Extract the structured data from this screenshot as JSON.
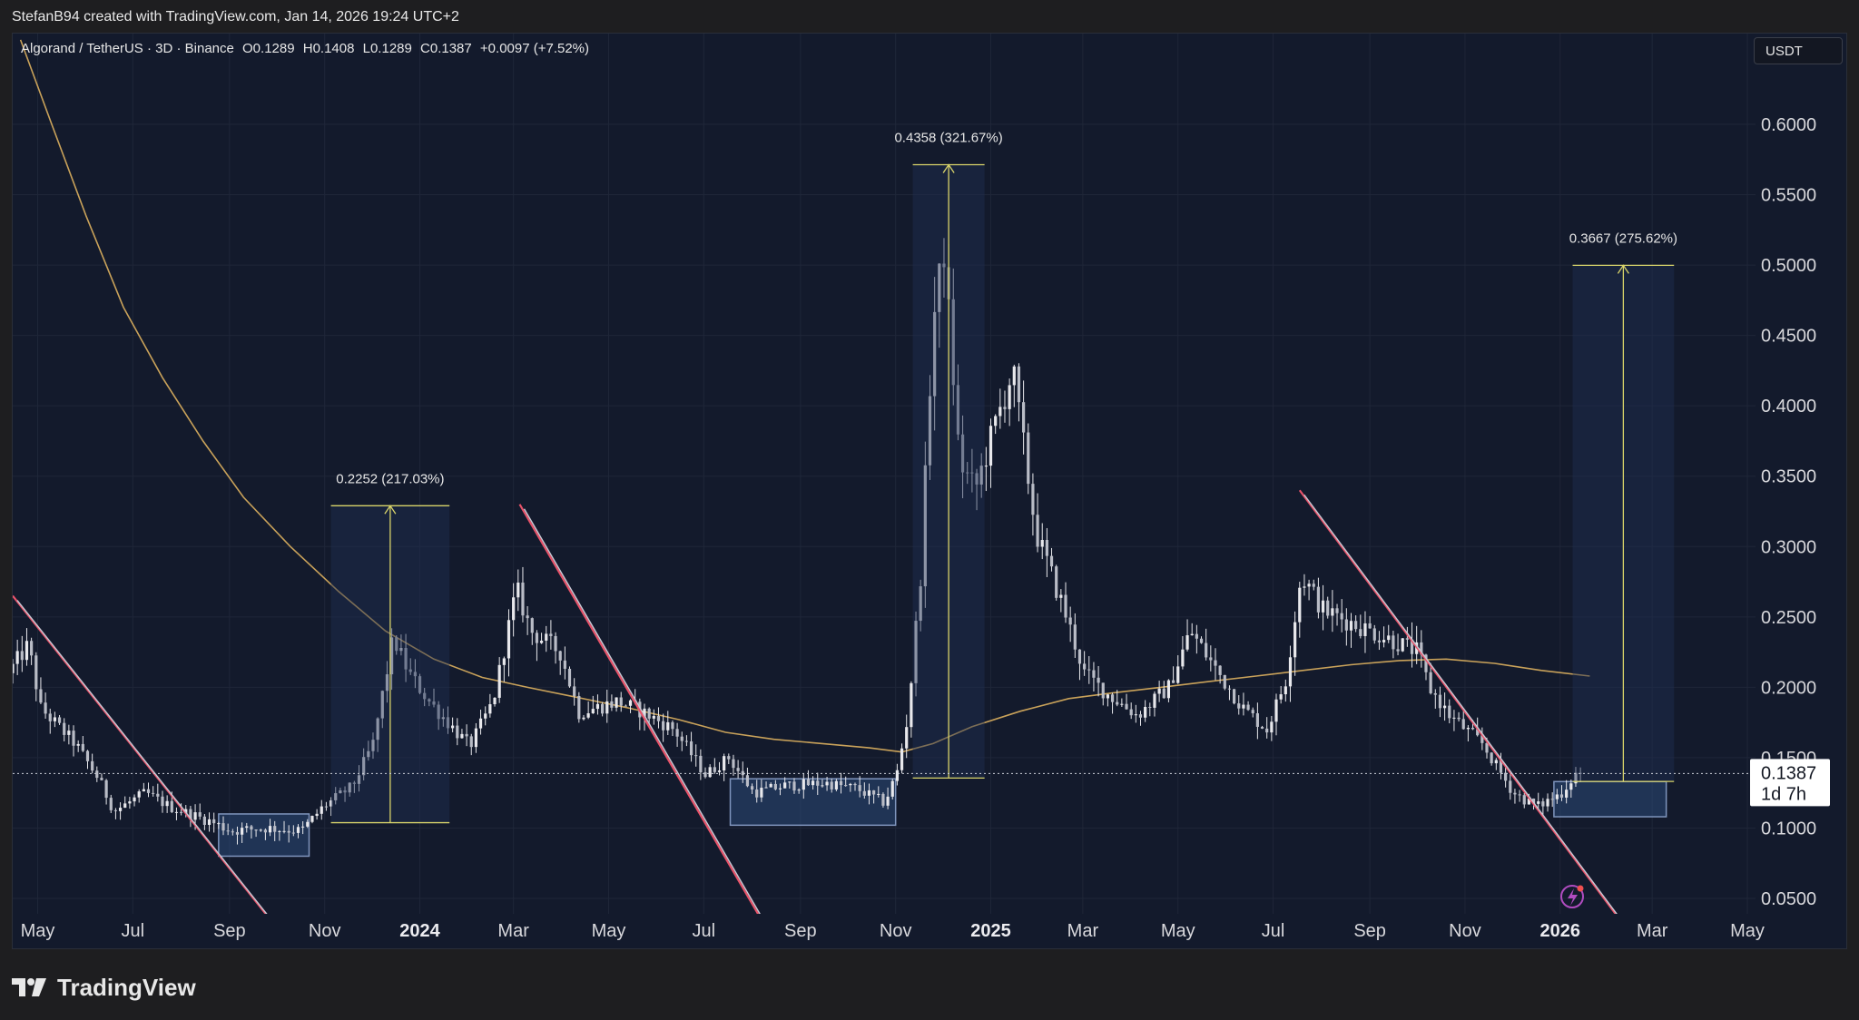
{
  "header": {
    "credit": "StefanB94 created with TradingView.com, Jan 14, 2026 19:24 UTC+2"
  },
  "legend": {
    "symbol": "Algorand / TetherUS · 3D · Binance",
    "open": "O0.1289",
    "high": "H0.1408",
    "low": "L0.1289",
    "close": "C0.1387",
    "change": "+0.0097 (+7.52%)"
  },
  "currency_button": "USDT",
  "footer": {
    "brand": "TradingView"
  },
  "colors": {
    "background": "#131a2c",
    "candle": "#e8e8ec",
    "ma_line": "#c9a25a",
    "trendline": "#e8536a",
    "measure": "#d9d46a",
    "zone_fill": "#2c4a78"
  },
  "chart_data": {
    "type": "candlestick",
    "price_axis": {
      "ticks": [
        "0.6000",
        "0.5500",
        "0.5000",
        "0.4500",
        "0.4000",
        "0.3500",
        "0.3000",
        "0.2500",
        "0.2000",
        "0.1500",
        "0.1000",
        "0.0500"
      ],
      "range": [
        0.02,
        0.64
      ]
    },
    "time_axis": {
      "ticks": [
        {
          "label": "May",
          "bold": false
        },
        {
          "label": "Jul",
          "bold": false
        },
        {
          "label": "Sep",
          "bold": false
        },
        {
          "label": "Nov",
          "bold": false
        },
        {
          "label": "2024",
          "bold": true
        },
        {
          "label": "Mar",
          "bold": false
        },
        {
          "label": "May",
          "bold": false
        },
        {
          "label": "Jul",
          "bold": false
        },
        {
          "label": "Sep",
          "bold": false
        },
        {
          "label": "Nov",
          "bold": false
        },
        {
          "label": "2025",
          "bold": true
        },
        {
          "label": "Mar",
          "bold": false
        },
        {
          "label": "May",
          "bold": false
        },
        {
          "label": "Jul",
          "bold": false
        },
        {
          "label": "Sep",
          "bold": false
        },
        {
          "label": "Nov",
          "bold": false
        },
        {
          "label": "2026",
          "bold": true
        },
        {
          "label": "Mar",
          "bold": false
        },
        {
          "label": "May",
          "bold": false
        }
      ],
      "start": "2023-04-15",
      "end": "2026-05-01"
    },
    "current_price": {
      "value": 0.1387,
      "label": "0.1387",
      "countdown": "1d 7h"
    },
    "price_path": [
      [
        "2023-04-15",
        0.21
      ],
      [
        "2023-04-28",
        0.23
      ],
      [
        "2023-05-06",
        0.185
      ],
      [
        "2023-05-28",
        0.16
      ],
      [
        "2023-06-12",
        0.135
      ],
      [
        "2023-06-22",
        0.112
      ],
      [
        "2023-07-12",
        0.125
      ],
      [
        "2023-07-28",
        0.115
      ],
      [
        "2023-08-22",
        0.105
      ],
      [
        "2023-09-05",
        0.098
      ],
      [
        "2023-09-28",
        0.1
      ],
      [
        "2023-10-20",
        0.098
      ],
      [
        "2023-11-03",
        0.115
      ],
      [
        "2023-11-22",
        0.13
      ],
      [
        "2023-12-05",
        0.16
      ],
      [
        "2023-12-18",
        0.235
      ],
      [
        "2023-12-28",
        0.21
      ],
      [
        "2024-01-10",
        0.19
      ],
      [
        "2024-01-22",
        0.175
      ],
      [
        "2024-02-05",
        0.158
      ],
      [
        "2024-02-20",
        0.19
      ],
      [
        "2024-03-06",
        0.27
      ],
      [
        "2024-03-15",
        0.24
      ],
      [
        "2024-04-03",
        0.225
      ],
      [
        "2024-04-15",
        0.182
      ],
      [
        "2024-05-10",
        0.19
      ],
      [
        "2024-05-25",
        0.183
      ],
      [
        "2024-06-15",
        0.17
      ],
      [
        "2024-07-05",
        0.138
      ],
      [
        "2024-07-20",
        0.15
      ],
      [
        "2024-08-05",
        0.125
      ],
      [
        "2024-08-25",
        0.13
      ],
      [
        "2024-09-20",
        0.132
      ],
      [
        "2024-10-10",
        0.128
      ],
      [
        "2024-10-28",
        0.118
      ],
      [
        "2024-11-05",
        0.14
      ],
      [
        "2024-11-12",
        0.18
      ],
      [
        "2024-11-20",
        0.28
      ],
      [
        "2024-11-28",
        0.46
      ],
      [
        "2024-12-05",
        0.51
      ],
      [
        "2024-12-15",
        0.36
      ],
      [
        "2024-12-25",
        0.34
      ],
      [
        "2025-01-05",
        0.38
      ],
      [
        "2025-01-18",
        0.425
      ],
      [
        "2025-02-02",
        0.31
      ],
      [
        "2025-02-20",
        0.255
      ],
      [
        "2025-03-05",
        0.21
      ],
      [
        "2025-03-20",
        0.195
      ],
      [
        "2025-04-08",
        0.18
      ],
      [
        "2025-04-28",
        0.2
      ],
      [
        "2025-05-12",
        0.24
      ],
      [
        "2025-05-30",
        0.21
      ],
      [
        "2025-06-15",
        0.185
      ],
      [
        "2025-06-30",
        0.17
      ],
      [
        "2025-07-12",
        0.205
      ],
      [
        "2025-07-22",
        0.28
      ],
      [
        "2025-08-05",
        0.255
      ],
      [
        "2025-08-25",
        0.245
      ],
      [
        "2025-09-15",
        0.235
      ],
      [
        "2025-10-05",
        0.225
      ],
      [
        "2025-10-12",
        0.2
      ],
      [
        "2025-10-25",
        0.18
      ],
      [
        "2025-11-15",
        0.16
      ],
      [
        "2025-12-05",
        0.125
      ],
      [
        "2025-12-20",
        0.115
      ],
      [
        "2026-01-05",
        0.125
      ],
      [
        "2026-01-14",
        0.1387
      ]
    ],
    "moving_average": [
      [
        "2023-04-20",
        0.66
      ],
      [
        "2023-05-10",
        0.6
      ],
      [
        "2023-06-01",
        0.535
      ],
      [
        "2023-06-25",
        0.47
      ],
      [
        "2023-07-20",
        0.42
      ],
      [
        "2023-08-15",
        0.375
      ],
      [
        "2023-09-10",
        0.335
      ],
      [
        "2023-10-10",
        0.3
      ],
      [
        "2023-11-10",
        0.268
      ],
      [
        "2023-12-10",
        0.24
      ],
      [
        "2024-01-10",
        0.22
      ],
      [
        "2024-02-10",
        0.207
      ],
      [
        "2024-03-10",
        0.2
      ],
      [
        "2024-04-10",
        0.193
      ],
      [
        "2024-05-15",
        0.185
      ],
      [
        "2024-06-15",
        0.177
      ],
      [
        "2024-07-15",
        0.168
      ],
      [
        "2024-08-15",
        0.163
      ],
      [
        "2024-09-15",
        0.16
      ],
      [
        "2024-10-15",
        0.157
      ],
      [
        "2024-11-05",
        0.154
      ],
      [
        "2024-11-25",
        0.16
      ],
      [
        "2024-12-20",
        0.172
      ],
      [
        "2025-01-20",
        0.183
      ],
      [
        "2025-02-20",
        0.192
      ],
      [
        "2025-03-20",
        0.196
      ],
      [
        "2025-04-20",
        0.2
      ],
      [
        "2025-05-20",
        0.204
      ],
      [
        "2025-06-20",
        0.208
      ],
      [
        "2025-07-20",
        0.212
      ],
      [
        "2025-08-20",
        0.216
      ],
      [
        "2025-09-20",
        0.219
      ],
      [
        "2025-10-20",
        0.22
      ],
      [
        "2025-11-20",
        0.217
      ],
      [
        "2025-12-20",
        0.212
      ],
      [
        "2026-01-20",
        0.208
      ]
    ],
    "trendlines": [
      {
        "from": [
          "2023-04-15",
          0.265
        ],
        "to": [
          "2023-10-15",
          0.01
        ]
      },
      {
        "from": [
          "2024-03-05",
          0.33
        ],
        "to": [
          "2024-08-20",
          0.01
        ]
      },
      {
        "from": [
          "2025-07-18",
          0.34
        ],
        "to": [
          "2026-02-25",
          0.01
        ]
      }
    ],
    "consolidation_zones": [
      {
        "from": "2023-08-25",
        "to": "2023-10-22",
        "low": 0.08,
        "high": 0.11
      },
      {
        "from": "2024-07-18",
        "to": "2024-11-01",
        "low": 0.102,
        "high": 0.135
      },
      {
        "from": "2025-12-28",
        "to": "2026-03-10",
        "low": 0.108,
        "high": 0.133
      }
    ],
    "projections": [
      {
        "from": "2023-11-05",
        "to": "2024-01-20",
        "low": 0.1038,
        "high": 0.329,
        "label": "0.2252 (217.03%)"
      },
      {
        "from": "2024-11-12",
        "to": "2024-12-28",
        "low": 0.1355,
        "high": 0.5713,
        "label": "0.4358 (321.67%)"
      },
      {
        "from": "2026-01-09",
        "to": "2026-03-15",
        "low": 0.1331,
        "high": 0.4998,
        "label": "0.3667 (275.62%)"
      }
    ]
  }
}
